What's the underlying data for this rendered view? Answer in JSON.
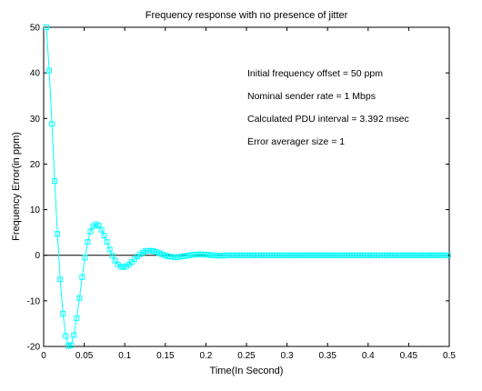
{
  "chart_data": {
    "type": "line",
    "title": "Frequency response with no presence of jitter",
    "xlabel": "Time(In Second)",
    "ylabel": "Frequency Error(in ppm)",
    "xlim": [
      0,
      0.5
    ],
    "ylim": [
      -20,
      50
    ],
    "x_ticks": [
      0,
      0.05,
      0.1,
      0.15,
      0.2,
      0.25,
      0.3,
      0.35,
      0.4,
      0.45,
      0.5
    ],
    "x_tick_labels": [
      "0",
      "0.05",
      "0.1",
      "0.15",
      "0.2",
      "0.25",
      "0.3",
      "0.35",
      "0.4",
      "0.45",
      "0.5"
    ],
    "y_ticks": [
      -20,
      -10,
      0,
      10,
      20,
      30,
      40,
      50
    ],
    "y_tick_labels": [
      "-20",
      "-10",
      "0",
      "10",
      "20",
      "30",
      "40",
      "50"
    ],
    "grid": false,
    "zero_line": true,
    "annotations": [
      "Initial frequency offset = 50 ppm",
      "Nominal sender rate = 1 Mbps",
      "Calculated PDU interval = 3.392 msec",
      "Error averager size = 1"
    ],
    "series": [
      {
        "color": "#00ffff",
        "marker": "square",
        "points": [
          [
            0.0034,
            50.0
          ],
          [
            0.0068,
            40.5
          ],
          [
            0.0102,
            28.8
          ],
          [
            0.0136,
            16.3
          ],
          [
            0.017,
            4.7
          ],
          [
            0.0204,
            -5.3
          ],
          [
            0.0238,
            -12.8
          ],
          [
            0.0272,
            -17.7
          ],
          [
            0.0306,
            -19.9
          ],
          [
            0.0339,
            -19.7
          ],
          [
            0.0373,
            -17.5
          ],
          [
            0.0407,
            -13.8
          ],
          [
            0.0441,
            -9.4
          ],
          [
            0.0475,
            -4.8
          ],
          [
            0.0509,
            -0.5
          ],
          [
            0.0543,
            2.9
          ],
          [
            0.0577,
            5.2
          ],
          [
            0.0611,
            6.4
          ],
          [
            0.0645,
            6.8
          ],
          [
            0.0679,
            6.5
          ],
          [
            0.0713,
            5.6
          ],
          [
            0.0746,
            4.3
          ],
          [
            0.078,
            2.9
          ],
          [
            0.0814,
            1.3
          ],
          [
            0.0848,
            -0.1
          ],
          [
            0.0882,
            -1.2
          ],
          [
            0.0916,
            -2.0
          ],
          [
            0.095,
            -2.5
          ],
          [
            0.0984,
            -2.6
          ],
          [
            0.1018,
            -2.4
          ],
          [
            0.1052,
            -2.0
          ],
          [
            0.1086,
            -1.5
          ],
          [
            0.1119,
            -0.9
          ],
          [
            0.1153,
            -0.3
          ],
          [
            0.1187,
            0.2
          ],
          [
            0.1221,
            0.6
          ],
          [
            0.1255,
            0.9
          ],
          [
            0.1289,
            1.0
          ],
          [
            0.1323,
            1.0
          ],
          [
            0.1357,
            0.9
          ],
          [
            0.1391,
            0.7
          ],
          [
            0.1425,
            0.5
          ],
          [
            0.1459,
            0.2
          ],
          [
            0.1492,
            0.0
          ],
          [
            0.1526,
            -0.2
          ],
          [
            0.156,
            -0.3
          ],
          [
            0.1594,
            -0.4
          ],
          [
            0.1628,
            -0.4
          ],
          [
            0.1662,
            -0.4
          ],
          [
            0.1696,
            -0.3
          ],
          [
            0.173,
            -0.2
          ],
          [
            0.1764,
            -0.1
          ],
          [
            0.1798,
            0.0
          ],
          [
            0.1832,
            0.1
          ],
          [
            0.1866,
            0.1
          ],
          [
            0.1899,
            0.2
          ],
          [
            0.1933,
            0.2
          ],
          [
            0.1967,
            0.2
          ],
          [
            0.2001,
            0.1
          ],
          [
            0.2035,
            0.1
          ],
          [
            0.2069,
            0.0
          ],
          [
            0.2103,
            0.0
          ],
          [
            0.2137,
            -0.1
          ],
          [
            0.2171,
            -0.1
          ],
          [
            0.2205,
            -0.1
          ],
          [
            0.2239,
            0.0
          ],
          [
            0.2273,
            0.0
          ],
          [
            0.2306,
            0.0
          ],
          [
            0.234,
            0.0
          ],
          [
            0.2374,
            0.0
          ],
          [
            0.2408,
            0.0
          ],
          [
            0.2442,
            0.0
          ],
          [
            0.2476,
            0.0
          ],
          [
            0.251,
            0.0
          ],
          [
            0.2544,
            0.0
          ],
          [
            0.2578,
            0.0
          ],
          [
            0.2612,
            0.0
          ],
          [
            0.2646,
            0.0
          ],
          [
            0.268,
            0.0
          ],
          [
            0.2713,
            0.0
          ],
          [
            0.2747,
            0.0
          ],
          [
            0.2781,
            0.0
          ],
          [
            0.2815,
            0.0
          ],
          [
            0.2849,
            0.0
          ],
          [
            0.2883,
            0.0
          ],
          [
            0.2917,
            0.0
          ],
          [
            0.2951,
            0.0
          ],
          [
            0.2985,
            0.0
          ],
          [
            0.3019,
            0.0
          ],
          [
            0.3053,
            0.0
          ],
          [
            0.3086,
            0.0
          ],
          [
            0.312,
            0.0
          ],
          [
            0.3154,
            0.0
          ],
          [
            0.3188,
            0.0
          ],
          [
            0.3222,
            0.0
          ],
          [
            0.3256,
            0.0
          ],
          [
            0.329,
            0.0
          ],
          [
            0.3324,
            0.0
          ],
          [
            0.3358,
            0.0
          ],
          [
            0.3392,
            0.0
          ],
          [
            0.3426,
            0.0
          ],
          [
            0.346,
            0.0
          ],
          [
            0.3493,
            0.0
          ],
          [
            0.3527,
            0.0
          ],
          [
            0.3561,
            0.0
          ],
          [
            0.3595,
            0.0
          ],
          [
            0.3629,
            0.0
          ],
          [
            0.3663,
            0.0
          ],
          [
            0.3697,
            0.0
          ],
          [
            0.3731,
            0.0
          ],
          [
            0.3765,
            0.0
          ],
          [
            0.3799,
            0.0
          ],
          [
            0.3833,
            0.0
          ],
          [
            0.3866,
            0.0
          ],
          [
            0.39,
            0.0
          ],
          [
            0.3934,
            0.0
          ],
          [
            0.3968,
            0.0
          ],
          [
            0.4002,
            0.0
          ],
          [
            0.4036,
            0.0
          ],
          [
            0.407,
            0.0
          ],
          [
            0.4104,
            0.0
          ],
          [
            0.4138,
            0.0
          ],
          [
            0.4172,
            0.0
          ],
          [
            0.4206,
            0.0
          ],
          [
            0.424,
            0.0
          ],
          [
            0.4273,
            0.0
          ],
          [
            0.4307,
            0.0
          ],
          [
            0.4341,
            0.0
          ],
          [
            0.4375,
            0.0
          ],
          [
            0.4409,
            0.0
          ],
          [
            0.4443,
            0.0
          ],
          [
            0.4477,
            0.0
          ],
          [
            0.4511,
            0.0
          ],
          [
            0.4545,
            0.0
          ],
          [
            0.4579,
            0.0
          ],
          [
            0.4613,
            0.0
          ],
          [
            0.4646,
            0.0
          ],
          [
            0.468,
            0.0
          ],
          [
            0.4714,
            0.0
          ],
          [
            0.4748,
            0.0
          ],
          [
            0.4782,
            0.0
          ],
          [
            0.4816,
            0.0
          ],
          [
            0.485,
            0.0
          ],
          [
            0.4884,
            0.0
          ],
          [
            0.4918,
            0.0
          ],
          [
            0.4952,
            0.0
          ],
          [
            0.4986,
            0.0
          ]
        ]
      }
    ]
  }
}
